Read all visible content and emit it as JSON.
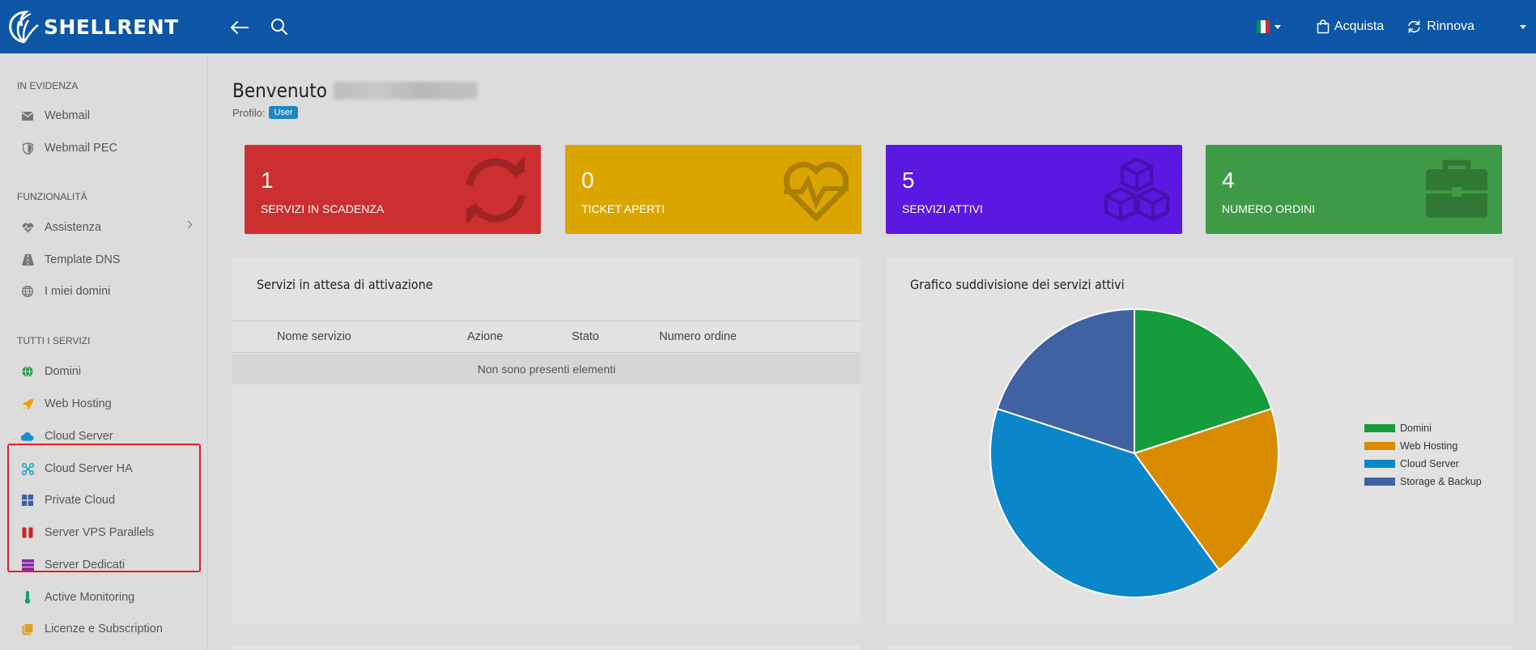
{
  "topbar": {
    "logo_text": "SHELLRENT",
    "acquista_label": "Acquista",
    "rinnova_label": "Rinnova",
    "flag_colors": [
      "#009246",
      "#ffffff",
      "#ce2b37"
    ]
  },
  "sidebar": {
    "sections": [
      "IN EVIDENZA",
      "FUNZIONALITÀ",
      "TUTTI I SERVIZI"
    ],
    "evidenza": [
      {
        "label": "Webmail",
        "icon": "envelope-icon"
      },
      {
        "label": "Webmail PEC",
        "icon": "shield-icon"
      }
    ],
    "funzionalita": [
      {
        "label": "Assistenza",
        "icon": "heartbeat-icon"
      },
      {
        "label": "Template DNS",
        "icon": "road-icon"
      },
      {
        "label": "I miei domini",
        "icon": "globe-icon"
      }
    ],
    "servizi": [
      {
        "label": "Domini",
        "icon": "globe-icon",
        "color": "#1a9a3c"
      },
      {
        "label": "Web Hosting",
        "icon": "rocket-icon",
        "color": "#f0a000"
      },
      {
        "label": "Cloud Server",
        "icon": "cloud-icon",
        "color": "#1e8ad6"
      },
      {
        "label": "Cloud Server HA",
        "icon": "network-icon",
        "color": "#1aa3b8"
      },
      {
        "label": "Private Cloud",
        "icon": "grid-icon",
        "color": "#3d5fa8"
      },
      {
        "label": "Server VPS Parallels",
        "icon": "parallels-icon",
        "color": "#d0202a"
      },
      {
        "label": "Server Dedicati",
        "icon": "server-icon",
        "color": "#8a2aa8"
      },
      {
        "label": "Active Monitoring",
        "icon": "thermometer-icon",
        "color": "#18a070"
      },
      {
        "label": "Licenze e Subscription",
        "icon": "key-icon",
        "color": "#e0a020"
      }
    ]
  },
  "main": {
    "welcome": "Benvenuto",
    "profile_label": "Profilo:",
    "profile_badge": "User",
    "stats": [
      {
        "value": "1",
        "label": "SERVIZI IN SCADENZA",
        "color": "#cc2f2f",
        "icon": "sync-icon"
      },
      {
        "value": "0",
        "label": "TICKET APERTI",
        "color": "#dba500",
        "icon": "heartbeat-icon"
      },
      {
        "value": "5",
        "label": "SERVIZI ATTIVI",
        "color": "#5b18e0",
        "icon": "cubes-icon"
      },
      {
        "value": "4",
        "label": "NUMERO ORDINI",
        "color": "#3f9a47",
        "icon": "briefcase-icon"
      }
    ],
    "pending": {
      "title": "Servizi in attesa di attivazione",
      "columns": [
        "Nome servizio",
        "Azione",
        "Stato",
        "Numero ordine"
      ],
      "empty_text": "Non sono presenti elementi"
    }
  },
  "chart_data": {
    "type": "pie",
    "title": "Grafico suddivisione dei servizi attivi",
    "labels": [
      "Domini",
      "Web Hosting",
      "Cloud Server",
      "Storage & Backup"
    ],
    "values": [
      1,
      1,
      2,
      1
    ],
    "colors": [
      "#169c3a",
      "#d98b00",
      "#0a86c9",
      "#4062a3"
    ],
    "legend_position": "right"
  }
}
